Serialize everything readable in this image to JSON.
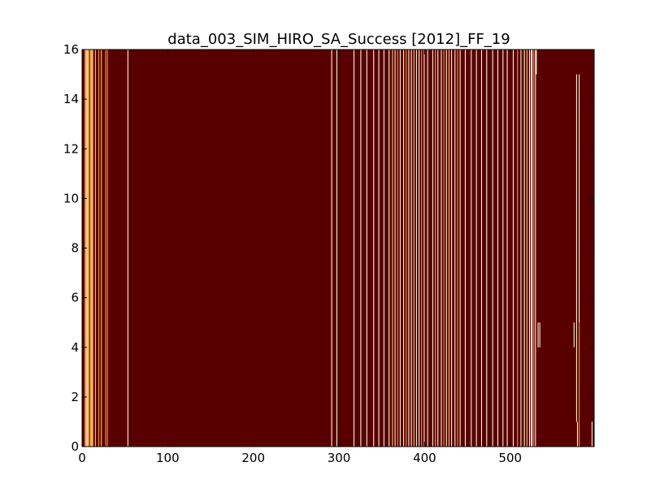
{
  "chart_data": {
    "type": "heatmap",
    "title": "data_003_SIM_HIRO_SA_Success [2012]_FF_19",
    "xlabel": "",
    "ylabel": "",
    "xlim": [
      0,
      598
    ],
    "ylim": [
      0,
      16
    ],
    "xticks": [
      0,
      100,
      200,
      300,
      400,
      500
    ],
    "yticks": [
      0,
      2,
      4,
      6,
      8,
      10,
      12,
      14,
      16
    ],
    "xtick_labels": [
      "0",
      "100",
      "200",
      "300",
      "400",
      "500"
    ],
    "ytick_labels": [
      "0",
      "2",
      "4",
      "6",
      "8",
      "10",
      "12",
      "14",
      "16"
    ],
    "grid": false,
    "colormap": "hot",
    "colors": {
      "background": "#580000",
      "high": "#fffbe8",
      "mid_high": "#ffd27a",
      "mid": "#ff9a2a"
    },
    "stripes": [
      {
        "x0": 3,
        "x1": 5,
        "y0": 0,
        "y1": 16,
        "level": "mid"
      },
      {
        "x0": 5,
        "x1": 6,
        "y0": 0,
        "y1": 16,
        "level": "high"
      },
      {
        "x0": 6,
        "x1": 8,
        "y0": 0,
        "y1": 16,
        "level": "mid_high"
      },
      {
        "x0": 9,
        "x1": 11,
        "y0": 0,
        "y1": 16,
        "level": "mid"
      },
      {
        "x0": 11,
        "x1": 12,
        "y0": 0,
        "y1": 16,
        "level": "high"
      },
      {
        "x0": 12,
        "x1": 13,
        "y0": 0,
        "y1": 16,
        "level": "mid"
      },
      {
        "x0": 15,
        "x1": 16,
        "y0": 0,
        "y1": 16,
        "level": "mid_high"
      },
      {
        "x0": 19,
        "x1": 20,
        "y0": 0,
        "y1": 16,
        "level": "mid"
      },
      {
        "x0": 22,
        "x1": 23,
        "y0": 0,
        "y1": 16,
        "level": "mid_high"
      },
      {
        "x0": 27,
        "x1": 28,
        "y0": 0,
        "y1": 16,
        "level": "mid"
      },
      {
        "x0": 29,
        "x1": 30,
        "y0": 0,
        "y1": 16,
        "level": "mid"
      },
      {
        "x0": 53,
        "x1": 54,
        "y0": 0,
        "y1": 16,
        "level": "high"
      },
      {
        "x0": 291,
        "x1": 292,
        "y0": 0,
        "y1": 16,
        "level": "high"
      },
      {
        "x0": 297,
        "x1": 298,
        "y0": 0,
        "y1": 16,
        "level": "high"
      },
      {
        "x0": 317,
        "x1": 318,
        "y0": 0,
        "y1": 16,
        "level": "high"
      },
      {
        "x0": 325,
        "x1": 326,
        "y0": 0,
        "y1": 16,
        "level": "high"
      },
      {
        "x0": 332,
        "x1": 333,
        "y0": 0,
        "y1": 16,
        "level": "high"
      },
      {
        "x0": 340,
        "x1": 341,
        "y0": 0,
        "y1": 16,
        "level": "high"
      },
      {
        "x0": 346,
        "x1": 347,
        "y0": 0,
        "y1": 16,
        "level": "high"
      },
      {
        "x0": 352,
        "x1": 353,
        "y0": 0,
        "y1": 16,
        "level": "high"
      },
      {
        "x0": 358,
        "x1": 359,
        "y0": 0,
        "y1": 16,
        "level": "high"
      },
      {
        "x0": 362,
        "x1": 363,
        "y0": 0,
        "y1": 16,
        "level": "mid_high"
      },
      {
        "x0": 365,
        "x1": 366,
        "y0": 0,
        "y1": 16,
        "level": "high"
      },
      {
        "x0": 368,
        "x1": 369,
        "y0": 0,
        "y1": 16,
        "level": "mid"
      },
      {
        "x0": 371,
        "x1": 372,
        "y0": 0,
        "y1": 16,
        "level": "high"
      },
      {
        "x0": 375,
        "x1": 376,
        "y0": 0,
        "y1": 16,
        "level": "high"
      },
      {
        "x0": 378,
        "x1": 379,
        "y0": 0,
        "y1": 16,
        "level": "mid"
      },
      {
        "x0": 381,
        "x1": 382,
        "y0": 0,
        "y1": 16,
        "level": "high"
      },
      {
        "x0": 384,
        "x1": 385,
        "y0": 0,
        "y1": 16,
        "level": "high"
      },
      {
        "x0": 387,
        "x1": 388,
        "y0": 0,
        "y1": 16,
        "level": "mid_high"
      },
      {
        "x0": 390,
        "x1": 391,
        "y0": 0,
        "y1": 16,
        "level": "high"
      },
      {
        "x0": 393,
        "x1": 394,
        "y0": 0,
        "y1": 16,
        "level": "high"
      },
      {
        "x0": 396,
        "x1": 397,
        "y0": 0,
        "y1": 16,
        "level": "mid"
      },
      {
        "x0": 399,
        "x1": 400,
        "y0": 0,
        "y1": 16,
        "level": "high"
      },
      {
        "x0": 403,
        "x1": 404,
        "y0": 0,
        "y1": 16,
        "level": "high"
      },
      {
        "x0": 409,
        "x1": 410,
        "y0": 0,
        "y1": 16,
        "level": "high"
      },
      {
        "x0": 412,
        "x1": 413,
        "y0": 0,
        "y1": 16,
        "level": "mid"
      },
      {
        "x0": 415,
        "x1": 416,
        "y0": 0,
        "y1": 16,
        "level": "high"
      },
      {
        "x0": 419,
        "x1": 420,
        "y0": 0,
        "y1": 16,
        "level": "high"
      },
      {
        "x0": 422,
        "x1": 423,
        "y0": 0,
        "y1": 16,
        "level": "mid"
      },
      {
        "x0": 425,
        "x1": 426,
        "y0": 0,
        "y1": 16,
        "level": "high"
      },
      {
        "x0": 428,
        "x1": 429,
        "y0": 0,
        "y1": 16,
        "level": "mid_high"
      },
      {
        "x0": 431,
        "x1": 432,
        "y0": 0,
        "y1": 16,
        "level": "high"
      },
      {
        "x0": 435,
        "x1": 436,
        "y0": 0,
        "y1": 16,
        "level": "high"
      },
      {
        "x0": 438,
        "x1": 439,
        "y0": 0,
        "y1": 16,
        "level": "mid"
      },
      {
        "x0": 441,
        "x1": 442,
        "y0": 0,
        "y1": 16,
        "level": "high"
      },
      {
        "x0": 447,
        "x1": 448,
        "y0": 0,
        "y1": 16,
        "level": "high"
      },
      {
        "x0": 454,
        "x1": 455,
        "y0": 0,
        "y1": 16,
        "level": "high"
      },
      {
        "x0": 460,
        "x1": 461,
        "y0": 0,
        "y1": 16,
        "level": "high"
      },
      {
        "x0": 466,
        "x1": 467,
        "y0": 0,
        "y1": 16,
        "level": "high"
      },
      {
        "x0": 472,
        "x1": 473,
        "y0": 0,
        "y1": 16,
        "level": "high"
      },
      {
        "x0": 479,
        "x1": 480,
        "y0": 0,
        "y1": 16,
        "level": "high"
      },
      {
        "x0": 485,
        "x1": 486,
        "y0": 0,
        "y1": 16,
        "level": "high"
      },
      {
        "x0": 491,
        "x1": 492,
        "y0": 0,
        "y1": 16,
        "level": "high"
      },
      {
        "x0": 496,
        "x1": 497,
        "y0": 0,
        "y1": 16,
        "level": "high"
      },
      {
        "x0": 503,
        "x1": 504,
        "y0": 0,
        "y1": 16,
        "level": "high"
      },
      {
        "x0": 508,
        "x1": 509,
        "y0": 0,
        "y1": 16,
        "level": "mid"
      },
      {
        "x0": 512,
        "x1": 513,
        "y0": 0,
        "y1": 16,
        "level": "high"
      },
      {
        "x0": 516,
        "x1": 517,
        "y0": 0,
        "y1": 16,
        "level": "high"
      },
      {
        "x0": 519,
        "x1": 520,
        "y0": 0,
        "y1": 16,
        "level": "mid_high"
      },
      {
        "x0": 522,
        "x1": 523,
        "y0": 0,
        "y1": 16,
        "level": "high"
      },
      {
        "x0": 524,
        "x1": 526,
        "y0": 0,
        "y1": 16,
        "level": "high"
      },
      {
        "x0": 527,
        "x1": 528,
        "y0": 0,
        "y1": 16,
        "level": "mid"
      },
      {
        "x0": 529,
        "x1": 530,
        "y0": 0,
        "y1": 16,
        "level": "high"
      },
      {
        "x0": 530,
        "x1": 531,
        "y0": 15,
        "y1": 16,
        "level": "high"
      },
      {
        "x0": 532,
        "x1": 533,
        "y0": 4,
        "y1": 5,
        "level": "high"
      },
      {
        "x0": 534,
        "x1": 535,
        "y0": 4,
        "y1": 5,
        "level": "high"
      },
      {
        "x0": 574,
        "x1": 575,
        "y0": 4,
        "y1": 5,
        "level": "high"
      },
      {
        "x0": 577,
        "x1": 578,
        "y0": 1,
        "y1": 15,
        "level": "high"
      },
      {
        "x0": 578,
        "x1": 579,
        "y0": 0,
        "y1": 1,
        "level": "high"
      },
      {
        "x0": 580,
        "x1": 581,
        "y0": 5,
        "y1": 15,
        "level": "high"
      },
      {
        "x0": 580,
        "x1": 581,
        "y0": 0,
        "y1": 5,
        "level": "mid"
      },
      {
        "x0": 595,
        "x1": 596,
        "y0": 0,
        "y1": 1,
        "level": "high"
      }
    ]
  }
}
